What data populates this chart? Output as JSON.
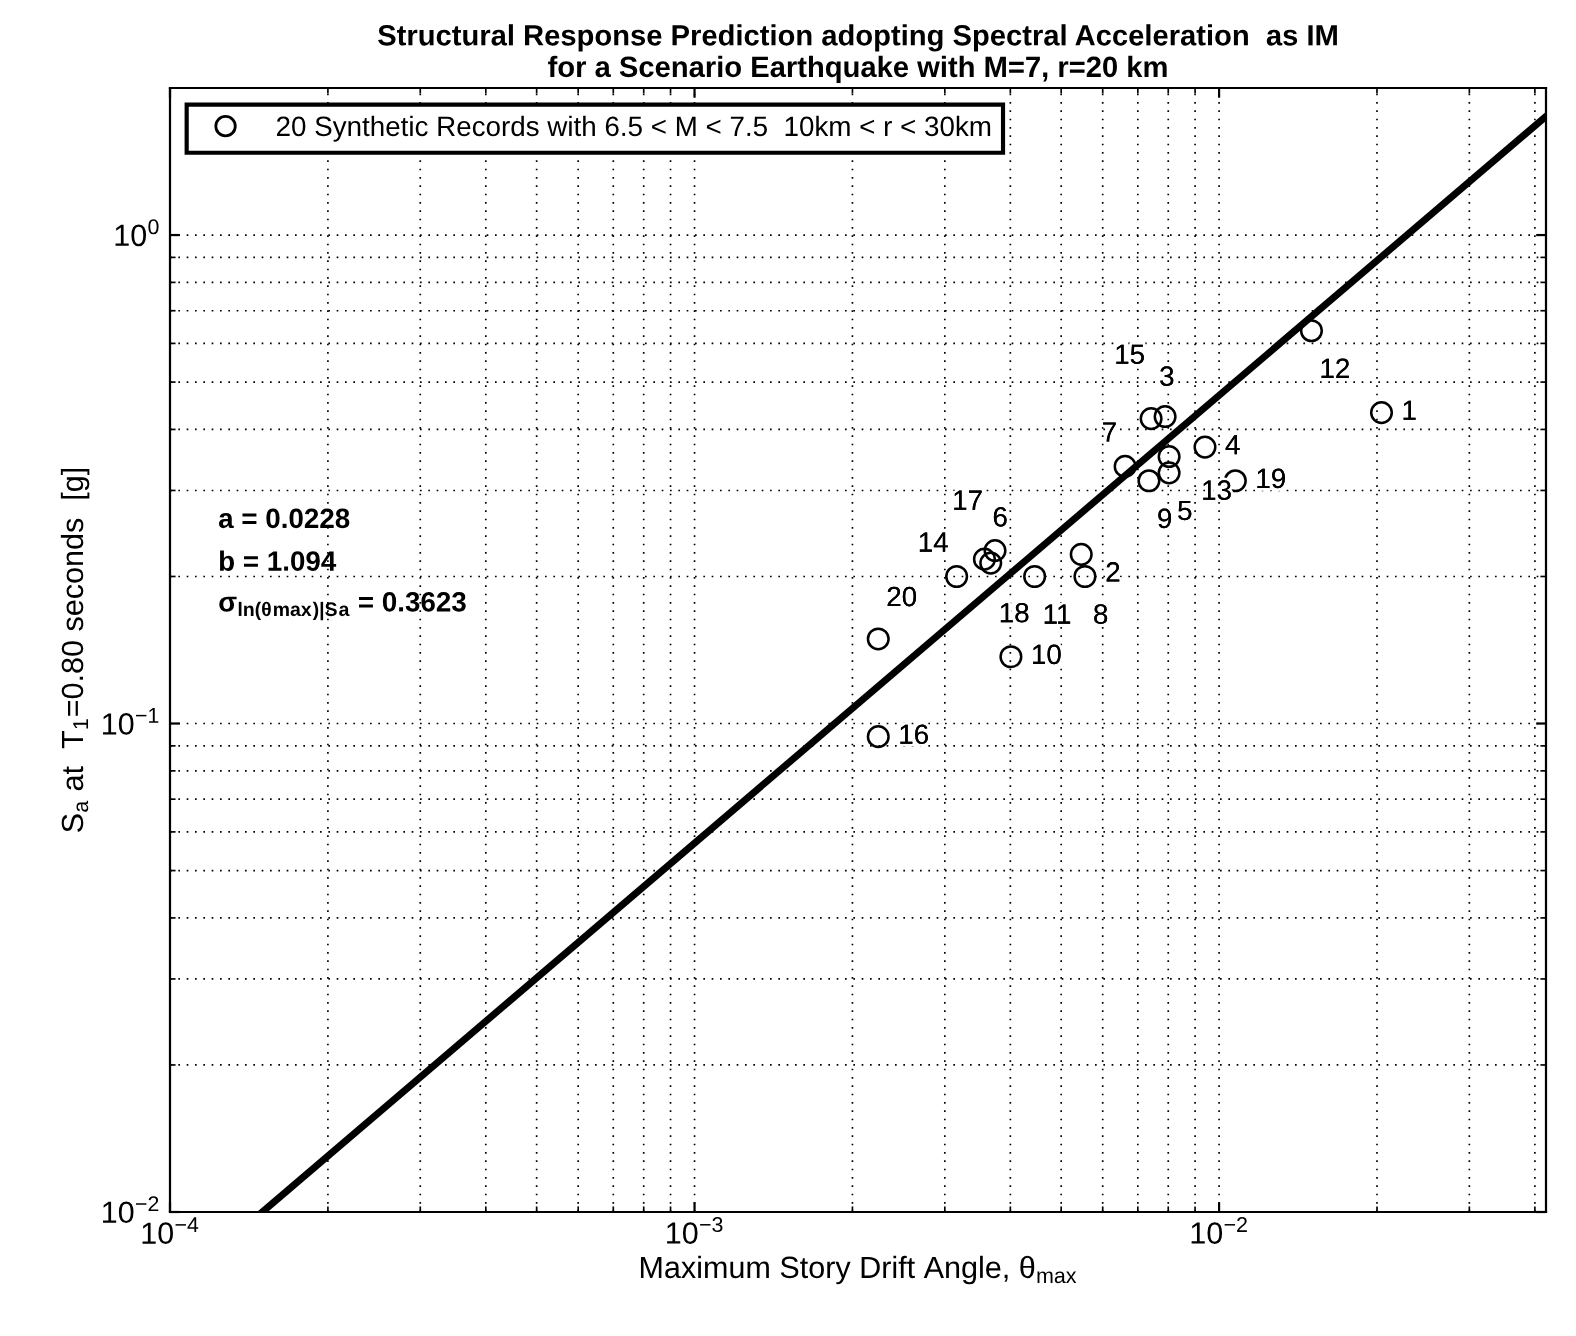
{
  "chart_data": {
    "type": "scatter",
    "title": "Structural Response Prediction adopting Spectral Acceleration  as IM\nfor a Scenario Earthquake with M=7, r=20 km",
    "xlabel": "Maximum Story Drift Angle, θ$_{max}$",
    "ylabel": "S$_{a}$ at  T$_{1}$=0.80 seconds  [g]",
    "log": "xy",
    "grid": true,
    "legend": "top left",
    "marker": "circle",
    "xlim": [
      0.0001,
      0.042
    ],
    "ylim": [
      0.01,
      2
    ],
    "xticks": [
      {
        "value": 0.0001,
        "label": "10$^{−4}$"
      },
      {
        "value": 0.001,
        "label": "10$^{−3}$"
      },
      {
        "value": 0.01,
        "label": "10$^{−2}$"
      }
    ],
    "yticks": [
      {
        "value": 0.01,
        "label": "10$^{−2}$"
      },
      {
        "value": 0.1,
        "label": "10$^{−1}$"
      },
      {
        "value": 1,
        "label": "10$^{0}$"
      }
    ],
    "series": [
      {
        "name": "20 Synthetic Records with 6.5 < M < 7.5  10km < r < 30km",
        "color": "#000000",
        "x": [
          0.0204,
          0.00546,
          0.00742,
          0.0094,
          0.00803,
          0.00357,
          0.00662,
          0.00555,
          0.00735,
          0.00401,
          0.00445,
          0.015,
          0.00803,
          0.00316,
          0.00789,
          0.00224,
          0.00374,
          0.00367,
          0.01074,
          0.00224
        ],
        "values": [
          0.433,
          0.222,
          0.421,
          0.368,
          0.326,
          0.217,
          0.336,
          0.2,
          0.314,
          0.137,
          0.2,
          0.637,
          0.352,
          0.2,
          0.425,
          0.094,
          0.226,
          0.213,
          0.314,
          0.149
        ]
      },
      {
        "type": "line",
        "marker": "none",
        "color": "#000000",
        "x": [
          0.00015,
          0.042
        ],
        "values": [
          0.01,
          1.75
        ]
      }
    ],
    "annotations": [
      {
        "text": "1",
        "x": 0.0204,
        "y": 0.433
      },
      {
        "text": "2",
        "x": 0.00546,
        "y": 0.222
      },
      {
        "text": "3",
        "x": 0.00742,
        "y": 0.421
      },
      {
        "text": "4",
        "x": 0.0094,
        "y": 0.368
      },
      {
        "text": "5",
        "x": 0.00803,
        "y": 0.326
      },
      {
        "text": "6",
        "x": 0.00357,
        "y": 0.217
      },
      {
        "text": "7",
        "x": 0.00662,
        "y": 0.336
      },
      {
        "text": "8",
        "x": 0.00555,
        "y": 0.2
      },
      {
        "text": "9",
        "x": 0.00735,
        "y": 0.314
      },
      {
        "text": "10",
        "x": 0.00401,
        "y": 0.137
      },
      {
        "text": "11",
        "x": 0.00445,
        "y": 0.2
      },
      {
        "text": "12",
        "x": 0.015,
        "y": 0.637
      },
      {
        "text": "13",
        "x": 0.00803,
        "y": 0.352
      },
      {
        "text": "14",
        "x": 0.00316,
        "y": 0.2
      },
      {
        "text": "15",
        "x": 0.00789,
        "y": 0.425
      },
      {
        "text": "16",
        "x": 0.00224,
        "y": 0.094
      },
      {
        "text": "17",
        "x": 0.00374,
        "y": 0.226
      },
      {
        "text": "18",
        "x": 0.00367,
        "y": 0.213
      },
      {
        "text": "19",
        "x": 0.01074,
        "y": 0.314
      },
      {
        "text": "20",
        "x": 0.00224,
        "y": 0.149
      },
      "a = 0.0228",
      "b = 1.094",
      "σ$_{ln(θ}$$_{max}$$_{)|S}$$_{a}$ = 0.3623"
    ]
  }
}
